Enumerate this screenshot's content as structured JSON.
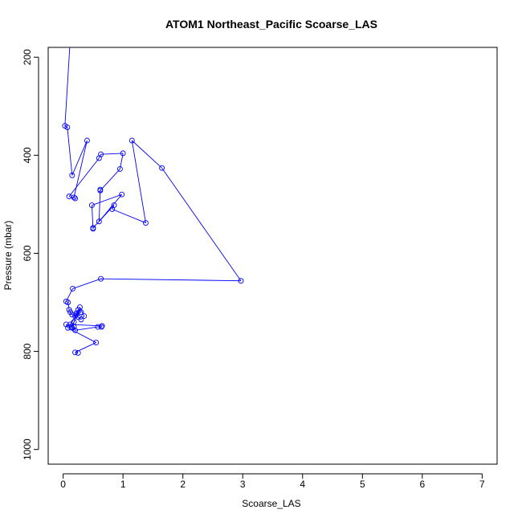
{
  "chart_data": {
    "type": "line",
    "title": "ATOM1 Northeast_Pacific Scoarse_LAS",
    "xlabel": "Scoarse_LAS",
    "ylabel": "Pressure (mbar)",
    "xlim": [
      -0.25,
      7.25
    ],
    "ylim": [
      1030,
      180
    ],
    "y_reversed": true,
    "x_ticks": [
      0,
      1,
      2,
      3,
      4,
      5,
      6,
      7
    ],
    "y_ticks": [
      200,
      400,
      600,
      800,
      1000
    ],
    "grid": false,
    "legend": "none",
    "series_color": "#0000ff",
    "marker": "open-circle",
    "points_visible_note": "",
    "series": [
      {
        "x": [
          0.12,
          0.03,
          0.07,
          0.15,
          0.4,
          0.18,
          0.2,
          0.1,
          0.6,
          0.63,
          1.0,
          0.95,
          0.62,
          0.62,
          0.6,
          0.98,
          0.48,
          0.5,
          0.5,
          0.85,
          0.82,
          1.38,
          1.15,
          1.65,
          2.97,
          0.63,
          0.16,
          0.05,
          0.08,
          0.1,
          0.12,
          0.15,
          0.2,
          0.22,
          0.25,
          0.3,
          0.35,
          0.28,
          0.18,
          0.14,
          0.12,
          0.22,
          0.3,
          0.25,
          0.15,
          0.18,
          0.2,
          0.58,
          0.64,
          0.65,
          0.05,
          0.08,
          0.55,
          0.2,
          0.25
        ],
        "y": [
          160,
          340,
          343,
          441,
          370,
          486,
          488,
          484,
          406,
          398,
          396,
          428,
          472,
          470,
          535,
          480,
          502,
          550,
          548,
          502,
          510,
          538,
          370,
          426,
          656,
          652,
          672,
          698,
          700,
          715,
          720,
          725,
          728,
          722,
          730,
          735,
          728,
          710,
          740,
          750,
          745,
          725,
          720,
          715,
          752,
          750,
          757,
          750,
          750,
          748,
          745,
          752,
          782,
          802,
          803
        ]
      }
    ],
    "segments_note": ""
  }
}
